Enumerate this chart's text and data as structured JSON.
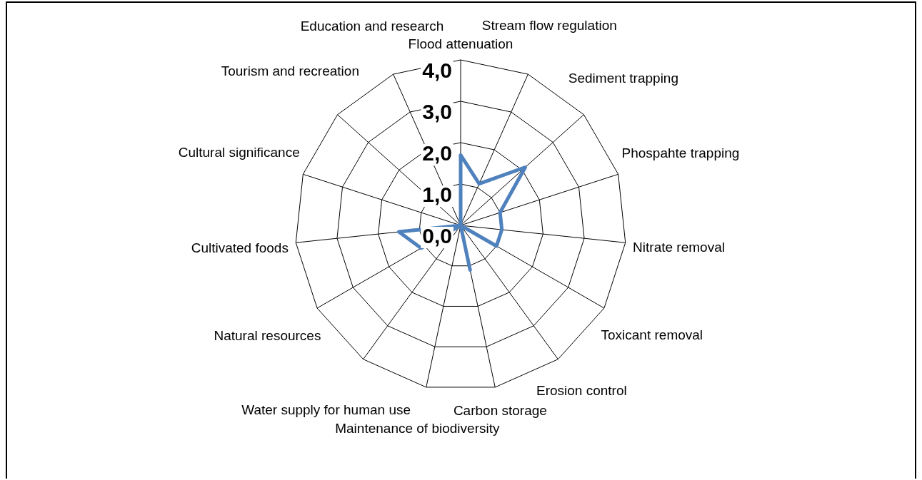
{
  "chart_data": {
    "type": "radar",
    "categories": [
      "Flood attenuation",
      "Stream flow regulation",
      "Sediment trapping",
      "Phospahte trapping",
      "Nitrate removal",
      "Toxicant removal",
      "Erosion control",
      "Carbon storage",
      "Maintenance of biodiversity",
      "Water supply for human use",
      "Natural resources",
      "Cultivated foods",
      "Cultural significance",
      "Tourism and recreation",
      "Education and research"
    ],
    "series": [
      {
        "color": "#4f81bd",
        "values": [
          1.7,
          1.1,
          2.1,
          1.0,
          1.0,
          1.0,
          0,
          1.1,
          0,
          0,
          1.1,
          1.5,
          0,
          0,
          0
        ]
      }
    ],
    "ylim": [
      0,
      4
    ],
    "yticks": [
      {
        "value": 0,
        "label": "0,0"
      },
      {
        "value": 1,
        "label": "1,0"
      },
      {
        "value": 2,
        "label": "2,0"
      },
      {
        "value": 3,
        "label": "3,0"
      },
      {
        "value": 4,
        "label": "4,0"
      }
    ],
    "grid": true,
    "legend": false,
    "marker": "none"
  }
}
